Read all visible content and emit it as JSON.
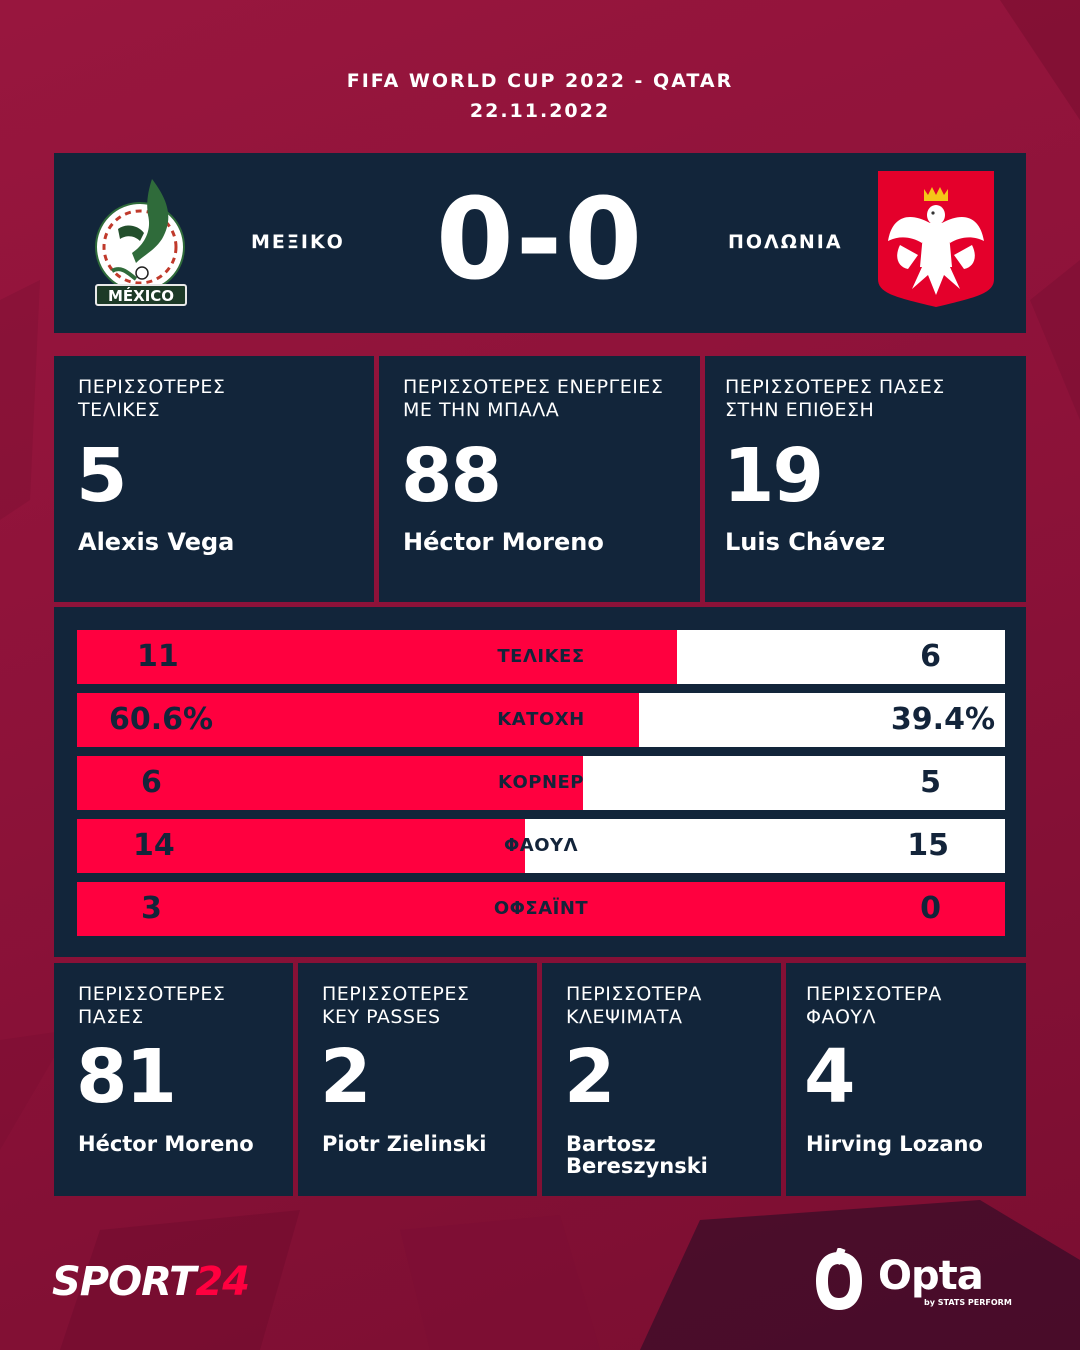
{
  "header": {
    "competition": "FIFA WORLD CUP 2022 - QATAR",
    "date": "22.11.2022"
  },
  "match": {
    "home": {
      "name": "ΜΕΞΙΚΟ",
      "crest_text": "MÉXICO"
    },
    "away": {
      "name": "ΠΟΛΩΝΙΑ"
    },
    "score": "0-0"
  },
  "top_stats": [
    {
      "label_line1": "ΠΕΡΙΣΣΟΤΕΡΕΣ",
      "label_line2": "ΤΕΛΙΚΕΣ",
      "value": "5",
      "player": "Alexis Vega"
    },
    {
      "label_line1": "ΠΕΡΙΣΣΟΤΕΡΕΣ ΕΝΕΡΓΕΙΕΣ",
      "label_line2": "ΜΕ ΤΗΝ ΜΠΑΛΑ",
      "value": "88",
      "player": "Héctor Moreno"
    },
    {
      "label_line1": "ΠΕΡΙΣΣΟΤΕΡΕΣ ΠΑΣΕΣ",
      "label_line2": "ΣΤΗΝ ΕΠΙΘΕΣΗ",
      "value": "19",
      "player": "Luis Chávez"
    }
  ],
  "comparison": [
    {
      "label": "ΤΕΛΙΚΕΣ",
      "home": "11",
      "away": "6",
      "home_share": 0.647
    },
    {
      "label": "ΚΑΤΟΧΗ",
      "home": "60.6%",
      "away": "39.4%",
      "home_share": 0.606
    },
    {
      "label": "ΚΟΡΝΕΡ",
      "home": "6",
      "away": "5",
      "home_share": 0.545
    },
    {
      "label": "ΦΑΟΥΛ",
      "home": "14",
      "away": "15",
      "home_share": 0.483
    },
    {
      "label": "ΟΦΣΑΪΝΤ",
      "home": "3",
      "away": "0",
      "home_share": 1.0
    }
  ],
  "bottom_stats": [
    {
      "label_line1": "ΠΕΡΙΣΣΟΤΕΡΕΣ",
      "label_line2": "ΠΑΣΕΣ",
      "value": "81",
      "player_line1": "Héctor Moreno",
      "player_line2": ""
    },
    {
      "label_line1": "ΠΕΡΙΣΣΟΤΕΡΕΣ",
      "label_line2": "KEY PASSES",
      "value": "2",
      "player_line1": "Piotr Zielinski",
      "player_line2": ""
    },
    {
      "label_line1": "ΠΕΡΙΣΣΟΤΕΡΑ",
      "label_line2": "ΚΛΕΨΙΜΑΤΑ",
      "value": "2",
      "player_line1": "Bartosz",
      "player_line2": "Bereszynski"
    },
    {
      "label_line1": "ΠΕΡΙΣΣΟΤΕΡΑ",
      "label_line2": "ΦΑΟΥΛ",
      "value": "4",
      "player_line1": "Hirving Lozano",
      "player_line2": ""
    }
  ],
  "footer": {
    "brand_part1": "SPORT",
    "brand_part2": "24",
    "provider": "Opta",
    "provider_sub": "by STATS PERFORM"
  },
  "colors": {
    "background": "#8d1239",
    "panel": "#12253a",
    "accent": "#ff003f"
  },
  "icons": {
    "home_crest": "mexico-crest-icon",
    "away_crest": "poland-eagle-icon",
    "provider_mark": "opta-o-icon"
  }
}
